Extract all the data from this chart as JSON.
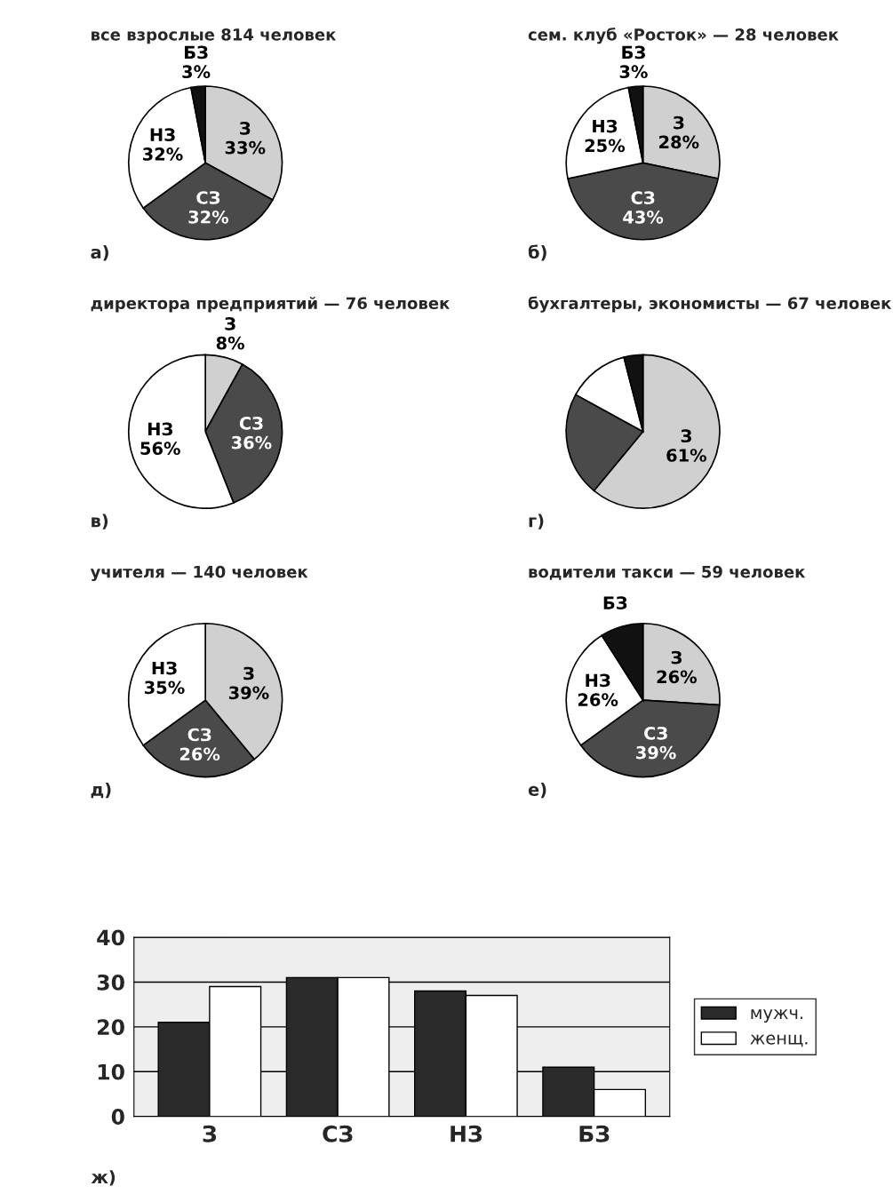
{
  "chart_data": [
    {
      "type": "pie",
      "title": "все взрослые 814 человек",
      "categories": [
        "З",
        "СЗ",
        "НЗ",
        "БЗ"
      ],
      "values": [
        33,
        32,
        32,
        3
      ],
      "colors": [
        "#d0d0d0",
        "#4a4a4a",
        "#ffffff",
        "#111111"
      ],
      "value_labels": [
        "33%",
        "32%",
        "32%",
        "3%"
      ],
      "annotations": [
        "а)"
      ]
    },
    {
      "type": "pie",
      "title": "сем. клуб «Росток» — 28 человек",
      "categories": [
        "З",
        "СЗ",
        "НЗ",
        "БЗ"
      ],
      "values": [
        28,
        43,
        25,
        3
      ],
      "colors": [
        "#d0d0d0",
        "#4a4a4a",
        "#ffffff",
        "#111111"
      ],
      "value_labels": [
        "28%",
        "43%",
        "25%",
        "3%"
      ],
      "annotations": [
        "б)"
      ]
    },
    {
      "type": "pie",
      "title": "директора предприятий — 76 человек",
      "categories": [
        "З",
        "СЗ",
        "НЗ"
      ],
      "values": [
        8,
        36,
        56
      ],
      "colors": [
        "#d0d0d0",
        "#4a4a4a",
        "#ffffff"
      ],
      "value_labels": [
        "8%",
        "36%",
        "56%"
      ],
      "annotations": [
        "в)"
      ]
    },
    {
      "type": "pie",
      "title": "бухгалтеры, экономисты — 67 человек",
      "categories": [
        "З",
        null,
        null,
        null
      ],
      "values": [
        61,
        22,
        13,
        4
      ],
      "colors": [
        "#d0d0d0",
        "#4a4a4a",
        "#ffffff",
        "#111111"
      ],
      "value_labels": [
        "61%",
        null,
        null,
        null
      ],
      "annotations": [
        "г)"
      ]
    },
    {
      "type": "pie",
      "title": "учителя — 140 человек",
      "categories": [
        "З",
        "СЗ",
        "НЗ"
      ],
      "values": [
        39,
        26,
        35
      ],
      "colors": [
        "#d0d0d0",
        "#4a4a4a",
        "#ffffff"
      ],
      "value_labels": [
        "39%",
        "26%",
        "35%"
      ],
      "annotations": [
        "д)"
      ]
    },
    {
      "type": "pie",
      "title": "водители такси — 59 человек",
      "categories": [
        "З",
        "СЗ",
        "НЗ",
        "БЗ"
      ],
      "values": [
        26,
        39,
        26,
        9
      ],
      "colors": [
        "#d0d0d0",
        "#4a4a4a",
        "#ffffff",
        "#111111"
      ],
      "value_labels": [
        "26%",
        "39%",
        "26%",
        null
      ],
      "annotations": [
        "е)"
      ]
    },
    {
      "type": "bar",
      "categories": [
        "З",
        "СЗ",
        "НЗ",
        "БЗ"
      ],
      "series": [
        {
          "name": "мужч.",
          "color": "#2a2a2a",
          "values": [
            21,
            31,
            28,
            11
          ]
        },
        {
          "name": "женщ.",
          "color": "#ffffff",
          "values": [
            29,
            31,
            27,
            6
          ]
        }
      ],
      "ylim": [
        0,
        40
      ],
      "yticks": [
        0,
        10,
        20,
        30,
        40
      ],
      "grid": "y",
      "legend": "right",
      "annotations": [
        "ж)"
      ]
    }
  ]
}
